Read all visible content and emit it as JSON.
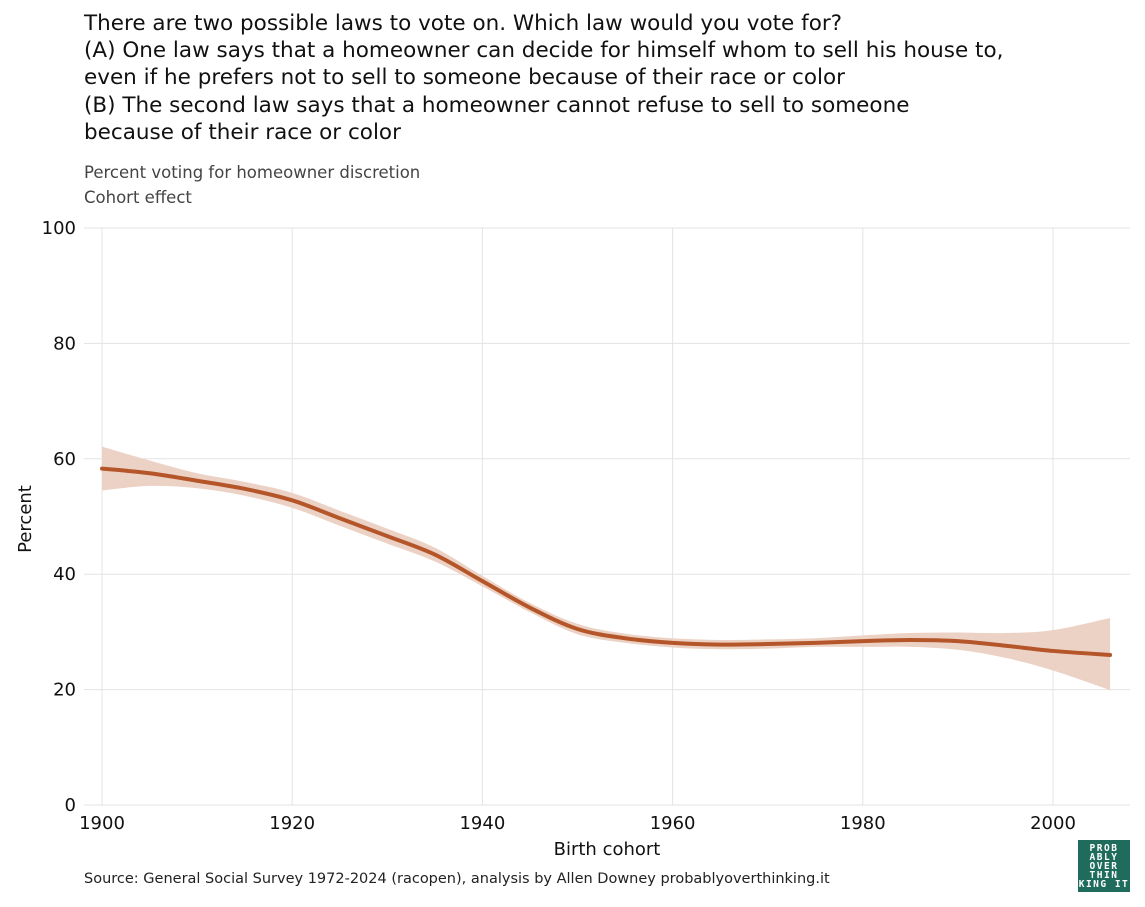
{
  "title_lines": [
    "There are two possible laws to vote on. Which law would you vote for?",
    "(A) One law says that a homeowner can decide for himself whom to sell his house to,",
    "even if he prefers not to sell to someone because of their race or color",
    "(B) The second law says that a homeowner cannot refuse to sell to someone",
    "because of their race or color"
  ],
  "subtitle_lines": [
    "Percent voting for homeowner discretion",
    "Cohort effect"
  ],
  "source": "Source: General Social Survey 1972-2024 (racopen), analysis by Allen Downey probablyoverthinking.it",
  "logo": {
    "text": "PROBABLYOVERTHINKINGIT",
    "lines": [
      "PROB",
      "ABLY",
      "OVER",
      "THIN",
      "KING IT"
    ],
    "bg_color": "#1f6b5c"
  },
  "colors": {
    "line": "#b5562a",
    "band": "#ecd2c4",
    "grid": "#e3e3e3"
  },
  "chart_data": {
    "type": "line",
    "xlabel": "Birth cohort",
    "ylabel": "Percent",
    "xlim": [
      1900,
      2006
    ],
    "ylim": [
      0,
      100
    ],
    "xticks": [
      1900,
      1920,
      1940,
      1960,
      1980,
      2000
    ],
    "yticks": [
      0,
      20,
      40,
      60,
      80,
      100
    ],
    "grid": true,
    "series": [
      {
        "x": [
          1900,
          1905,
          1910,
          1915,
          1920,
          1925,
          1930,
          1935,
          1940,
          1945,
          1950,
          1955,
          1960,
          1965,
          1970,
          1975,
          1980,
          1985,
          1990,
          1995,
          2000,
          2006
        ],
        "values": [
          58.3,
          57.5,
          56.2,
          54.8,
          52.8,
          49.7,
          46.6,
          43.4,
          38.8,
          34.2,
          30.5,
          28.9,
          28.1,
          27.8,
          27.9,
          28.1,
          28.4,
          28.6,
          28.4,
          27.6,
          26.7,
          26.0
        ],
        "lower": [
          54.5,
          55.3,
          54.9,
          53.6,
          51.5,
          48.4,
          45.3,
          42.2,
          37.9,
          33.4,
          29.6,
          28.1,
          27.3,
          27.0,
          27.1,
          27.4,
          27.4,
          27.4,
          26.9,
          25.5,
          23.3,
          19.9
        ],
        "upper": [
          62.1,
          59.7,
          57.5,
          56.0,
          54.1,
          51.0,
          47.9,
          44.6,
          39.7,
          35.0,
          31.4,
          29.7,
          28.9,
          28.6,
          28.7,
          28.9,
          29.4,
          29.8,
          29.9,
          29.8,
          30.3,
          32.4
        ]
      }
    ]
  }
}
